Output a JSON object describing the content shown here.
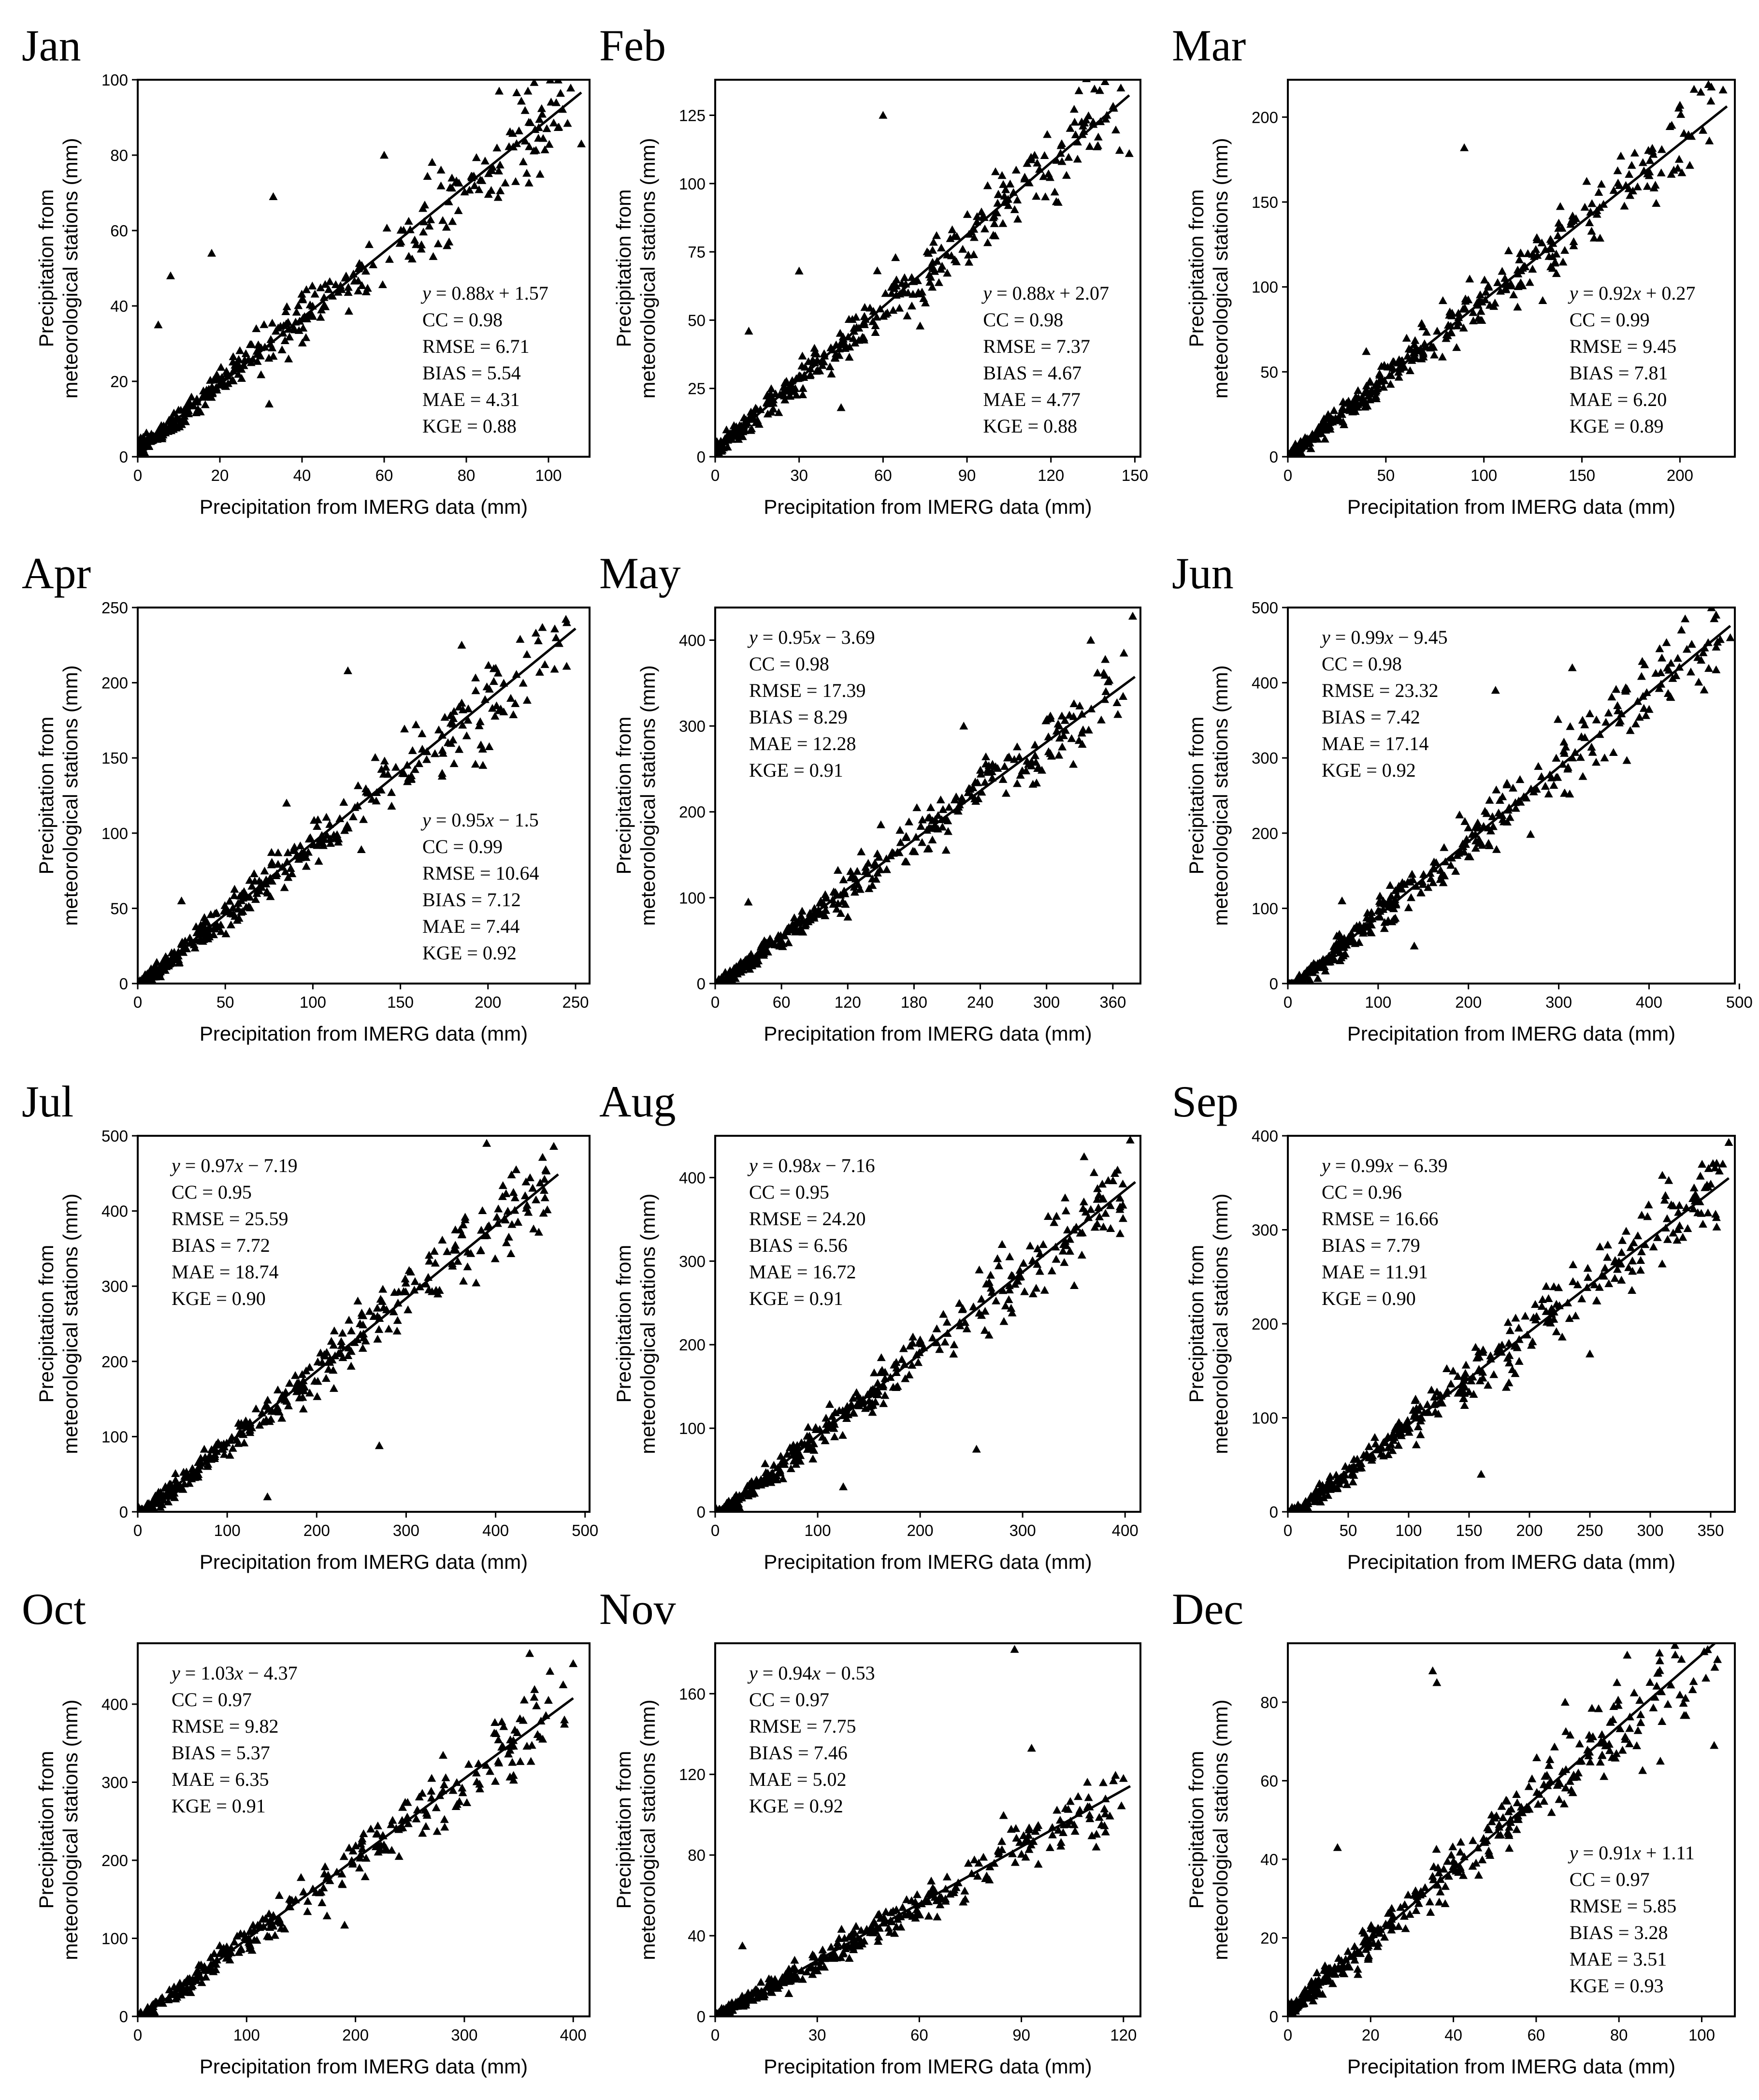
{
  "figure": {
    "ylabel_line1": "Precipitation from",
    "ylabel_line2": "meteorological stations (mm)",
    "xlabel": "Precipitation from IMERG data (mm)",
    "marker_color": "#000000",
    "fit_line_color": "#000000"
  },
  "chart_data": [
    {
      "type": "scatter",
      "title": "Jan",
      "xlabel": "Precipitation from IMERG data (mm)",
      "ylabel": "Precipitation from meteorological stations (mm)",
      "xlim": [
        0,
        110
      ],
      "ylim": [
        0,
        100
      ],
      "xticks": [
        "0",
        "20",
        "40",
        "60",
        "80",
        "100"
      ],
      "yticks": [
        "0",
        "20",
        "40",
        "60",
        "80",
        "100"
      ],
      "fit": {
        "slope": 0.88,
        "intercept": 1.57,
        "x_end": 108
      },
      "stats": {
        "equation": "y = 0.88x + 1.57",
        "cc": "CC = 0.98",
        "rmse": "RMSE = 6.71",
        "bias": "BIAS = 5.54",
        "mae": "MAE = 4.31",
        "kge": "KGE = 0.88"
      },
      "stats_position": "bottom-right",
      "n_points": 380,
      "outliers": [
        [
          8,
          48
        ],
        [
          18,
          54
        ],
        [
          33,
          69
        ],
        [
          60,
          80
        ],
        [
          88,
          97
        ],
        [
          95,
          97
        ],
        [
          108,
          83
        ],
        [
          32,
          14
        ],
        [
          92,
          73
        ],
        [
          5,
          35
        ]
      ]
    },
    {
      "type": "scatter",
      "title": "Feb",
      "xlabel": "Precipitation from IMERG data (mm)",
      "ylabel": "Precipitation from meteorological stations (mm)",
      "xlim": [
        0,
        152
      ],
      "ylim": [
        0,
        138
      ],
      "xticks": [
        "0",
        "30",
        "60",
        "90",
        "120",
        "150"
      ],
      "yticks": [
        "0",
        "25",
        "50",
        "75",
        "100",
        "125"
      ],
      "fit": {
        "slope": 0.88,
        "intercept": 2.07,
        "x_end": 148
      },
      "stats": {
        "equation": "y = 0.88x + 2.07",
        "cc": "CC = 0.98",
        "rmse": "RMSE = 7.37",
        "bias": "BIAS = 4.67",
        "mae": "MAE = 4.77",
        "kge": "KGE = 0.88"
      },
      "stats_position": "bottom-right",
      "n_points": 380,
      "outliers": [
        [
          60,
          125
        ],
        [
          148,
          111
        ],
        [
          145,
          135
        ],
        [
          130,
          134
        ],
        [
          12,
          46
        ],
        [
          30,
          68
        ],
        [
          45,
          18
        ],
        [
          140,
          125
        ]
      ]
    },
    {
      "type": "scatter",
      "title": "Mar",
      "xlabel": "Precipitation from IMERG data (mm)",
      "ylabel": "Precipitation from meteorological stations (mm)",
      "xlim": [
        0,
        228
      ],
      "ylim": [
        0,
        222
      ],
      "xticks": [
        "0",
        "50",
        "100",
        "150",
        "200"
      ],
      "yticks": [
        "0",
        "50",
        "100",
        "150",
        "200"
      ],
      "fit": {
        "slope": 0.92,
        "intercept": 0.27,
        "x_end": 224
      },
      "stats": {
        "equation": "y = 0.92x + 0.27",
        "cc": "CC = 0.99",
        "rmse": "RMSE = 9.45",
        "bias": "BIAS = 7.81",
        "mae": "MAE = 6.20",
        "kge": "KGE = 0.89"
      },
      "stats_position": "bottom-right",
      "n_points": 380,
      "outliers": [
        [
          90,
          182
        ],
        [
          222,
          216
        ],
        [
          215,
          186
        ],
        [
          200,
          207
        ],
        [
          40,
          62
        ],
        [
          130,
          92
        ]
      ]
    },
    {
      "type": "scatter",
      "title": "Apr",
      "xlabel": "Precipitation from IMERG data (mm)",
      "ylabel": "Precipitation from meteorological stations (mm)",
      "xlim": [
        0,
        258
      ],
      "ylim": [
        0,
        250
      ],
      "xticks": [
        "0",
        "50",
        "100",
        "150",
        "200",
        "250"
      ],
      "yticks": [
        "0",
        "50",
        "100",
        "150",
        "200",
        "250"
      ],
      "fit": {
        "slope": 0.95,
        "intercept": -1.5,
        "x_end": 250
      },
      "stats": {
        "equation": "y = 0.95x − 1.5",
        "cc": "CC = 0.99",
        "rmse": "RMSE = 10.64",
        "bias": "BIAS = 7.12",
        "mae": "MAE = 7.44",
        "kge": "KGE = 0.92"
      },
      "stats_position": "bottom-right",
      "n_points": 380,
      "outliers": [
        [
          120,
          208
        ],
        [
          85,
          120
        ],
        [
          245,
          240
        ],
        [
          185,
          225
        ],
        [
          25,
          55
        ],
        [
          60,
          48
        ]
      ]
    },
    {
      "type": "scatter",
      "title": "May",
      "xlabel": "Precipitation from IMERG data (mm)",
      "ylabel": "Precipitation from meteorological stations (mm)",
      "xlim": [
        0,
        385
      ],
      "ylim": [
        0,
        438
      ],
      "xticks": [
        "0",
        "60",
        "120",
        "180",
        "240",
        "300",
        "360"
      ],
      "yticks": [
        "0",
        "100",
        "200",
        "300",
        "400"
      ],
      "fit": {
        "slope": 0.95,
        "intercept": -3.69,
        "x_end": 380
      },
      "stats": {
        "equation": "y = 0.95x − 3.69",
        "cc": "CC = 0.98",
        "rmse": "RMSE = 17.39",
        "bias": "BIAS = 8.29",
        "mae": "MAE = 12.28",
        "kge": "KGE = 0.91"
      },
      "stats_position": "top-left",
      "n_points": 380,
      "outliers": [
        [
          378,
          428
        ],
        [
          340,
          400
        ],
        [
          370,
          385
        ],
        [
          225,
          300
        ],
        [
          30,
          95
        ],
        [
          150,
          185
        ]
      ]
    },
    {
      "type": "scatter",
      "title": "Jun",
      "xlabel": "Precipitation from IMERG data (mm)",
      "ylabel": "Precipitation from meteorological stations (mm)",
      "xlim": [
        0,
        495
      ],
      "ylim": [
        0,
        500
      ],
      "xticks": [
        "0",
        "100",
        "200",
        "300",
        "400",
        "500"
      ],
      "yticks": [
        "0",
        "100",
        "200",
        "300",
        "400",
        "500"
      ],
      "fit": {
        "slope": 0.99,
        "intercept": -9.45,
        "x_end": 490
      },
      "stats": {
        "equation": "y = 0.99x − 9.45",
        "cc": "CC = 0.98",
        "rmse": "RMSE = 23.32",
        "bias": "BIAS = 7.42",
        "mae": "MAE = 17.14",
        "kge": "KGE = 0.92"
      },
      "stats_position": "top-left",
      "n_points": 380,
      "outliers": [
        [
          440,
          485
        ],
        [
          315,
          420
        ],
        [
          490,
          460
        ],
        [
          230,
          390
        ],
        [
          60,
          110
        ],
        [
          140,
          50
        ]
      ]
    },
    {
      "type": "scatter",
      "title": "Jul",
      "xlabel": "Precipitation from IMERG data (mm)",
      "ylabel": "Precipitation from meteorological stations (mm)",
      "xlim": [
        0,
        505
      ],
      "ylim": [
        0,
        500
      ],
      "xticks": [
        "0",
        "100",
        "200",
        "300",
        "400",
        "500"
      ],
      "yticks": [
        "0",
        "100",
        "200",
        "300",
        "400",
        "500"
      ],
      "fit": {
        "slope": 0.97,
        "intercept": -7.19,
        "x_end": 470
      },
      "stats": {
        "equation": "y = 0.97x − 7.19",
        "cc": "CC = 0.95",
        "rmse": "RMSE = 25.59",
        "bias": "BIAS = 7.72",
        "mae": "MAE = 18.74",
        "kge": "KGE = 0.90"
      },
      "stats_position": "top-left",
      "n_points": 380,
      "outliers": [
        [
          390,
          490
        ],
        [
          465,
          486
        ],
        [
          410,
          390
        ],
        [
          145,
          20
        ],
        [
          270,
          88
        ],
        [
          355,
          375
        ]
      ]
    },
    {
      "type": "scatter",
      "title": "Aug",
      "xlabel": "Precipitation from IMERG data (mm)",
      "ylabel": "Precipitation from meteorological stations (mm)",
      "xlim": [
        0,
        415
      ],
      "ylim": [
        0,
        450
      ],
      "xticks": [
        "0",
        "100",
        "200",
        "300",
        "400"
      ],
      "yticks": [
        "0",
        "100",
        "200",
        "300",
        "400"
      ],
      "fit": {
        "slope": 0.98,
        "intercept": -7.16,
        "x_end": 410
      },
      "stats": {
        "equation": "y = 0.98x − 7.16",
        "cc": "CC = 0.95",
        "rmse": "RMSE = 24.20",
        "bias": "BIAS = 6.56",
        "mae": "MAE = 16.72",
        "kge": "KGE = 0.91"
      },
      "stats_position": "top-left",
      "n_points": 380,
      "outliers": [
        [
          405,
          445
        ],
        [
          360,
          425
        ],
        [
          255,
          75
        ],
        [
          125,
          30
        ],
        [
          390,
          405
        ],
        [
          280,
          320
        ]
      ]
    },
    {
      "type": "scatter",
      "title": "Sep",
      "xlabel": "Precipitation from IMERG data (mm)",
      "ylabel": "Precipitation from meteorological stations (mm)",
      "xlim": [
        0,
        370
      ],
      "ylim": [
        0,
        400
      ],
      "xticks": [
        "0",
        "50",
        "100",
        "150",
        "200",
        "250",
        "300",
        "350"
      ],
      "yticks": [
        "0",
        "100",
        "200",
        "300",
        "400"
      ],
      "fit": {
        "slope": 0.99,
        "intercept": -6.39,
        "x_end": 365
      },
      "stats": {
        "equation": "y = 0.99x − 6.39",
        "cc": "CC = 0.96",
        "rmse": "RMSE = 16.66",
        "bias": "BIAS = 7.79",
        "mae": "MAE = 11.91",
        "kge": "KGE = 0.90"
      },
      "stats_position": "top-left",
      "n_points": 380,
      "outliers": [
        [
          365,
          393
        ],
        [
          360,
          370
        ],
        [
          355,
          303
        ],
        [
          310,
          358
        ],
        [
          250,
          168
        ],
        [
          160,
          40
        ]
      ]
    },
    {
      "type": "scatter",
      "title": "Oct",
      "xlabel": "Precipitation from IMERG data (mm)",
      "ylabel": "Precipitation from meteorological stations (mm)",
      "xlim": [
        0,
        415
      ],
      "ylim": [
        0,
        478
      ],
      "xticks": [
        "0",
        "100",
        "200",
        "300",
        "400"
      ],
      "yticks": [
        "0",
        "100",
        "200",
        "300",
        "400"
      ],
      "fit": {
        "slope": 1.03,
        "intercept": -4.37,
        "x_end": 400
      },
      "stats": {
        "equation": "y = 1.03x − 4.37",
        "cc": "CC = 0.97",
        "rmse": "RMSE = 9.82",
        "bias": "BIAS = 5.37",
        "mae": "MAE = 6.35",
        "kge": "KGE = 0.91"
      },
      "stats_position": "top-left",
      "n_points": 320,
      "outliers": [
        [
          360,
          465
        ],
        [
          400,
          452
        ],
        [
          270,
          305
        ],
        [
          275,
          237
        ],
        [
          240,
          205
        ],
        [
          190,
          117
        ],
        [
          150,
          178
        ],
        [
          130,
          155
        ]
      ]
    },
    {
      "type": "scatter",
      "title": "Nov",
      "xlabel": "Precipitation from IMERG data (mm)",
      "ylabel": "Precipitation from meteorological stations (mm)",
      "xlim": [
        0,
        125
      ],
      "ylim": [
        0,
        185
      ],
      "xticks": [
        "0",
        "30",
        "60",
        "90",
        "120"
      ],
      "yticks": [
        "0",
        "40",
        "80",
        "120",
        "160"
      ],
      "fit": {
        "slope": 0.94,
        "intercept": -0.53,
        "x_end": 122
      },
      "stats": {
        "equation": "y = 0.94x − 0.53",
        "cc": "CC = 0.97",
        "rmse": "RMSE = 7.75",
        "bias": "BIAS = 7.46",
        "mae": "MAE = 5.02",
        "kge": "KGE = 0.92"
      },
      "stats_position": "top-left",
      "n_points": 380,
      "outliers": [
        [
          88,
          182
        ],
        [
          93,
          133
        ],
        [
          112,
          84
        ],
        [
          120,
          118
        ],
        [
          8,
          35
        ]
      ]
    },
    {
      "type": "scatter",
      "title": "Dec",
      "xlabel": "Precipitation from IMERG data (mm)",
      "ylabel": "Precipitation from meteorological stations (mm)",
      "xlim": [
        0,
        108
      ],
      "ylim": [
        0,
        95
      ],
      "xticks": [
        "0",
        "20",
        "40",
        "60",
        "80",
        "100"
      ],
      "yticks": [
        "0",
        "20",
        "40",
        "60",
        "80"
      ],
      "fit": {
        "slope": 0.91,
        "intercept": 1.11,
        "x_end": 108
      },
      "stats": {
        "equation": "y = 0.91x + 1.11",
        "cc": "CC = 0.97",
        "rmse": "RMSE = 5.85",
        "bias": "BIAS = 3.28",
        "mae": "MAE = 3.51",
        "kge": "KGE = 0.93"
      },
      "stats_position": "bottom-right",
      "n_points": 380,
      "outliers": [
        [
          35,
          88
        ],
        [
          36,
          85
        ],
        [
          82,
          92
        ],
        [
          103,
          69
        ],
        [
          90,
          65
        ],
        [
          12,
          43
        ],
        [
          67,
          80
        ]
      ]
    }
  ]
}
